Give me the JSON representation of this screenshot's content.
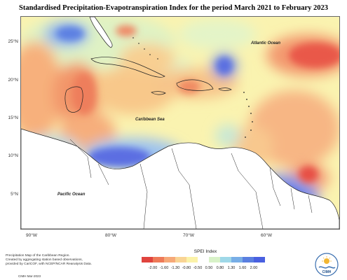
{
  "title": "Standardised Precipitation-Evapotranspiration Index for the period March 2021 to February 2023",
  "map": {
    "y_ticks": [
      "25°N",
      "20°N",
      "15°N",
      "10°N",
      "5°N"
    ],
    "x_ticks": [
      "90°W",
      "80°W",
      "70°W",
      "60°W"
    ],
    "labels": {
      "atlantic": "Atlantic Ocean",
      "caribbean": "Caribbean Sea",
      "pacific": "Pacific Ocean"
    }
  },
  "legend": {
    "title": "SPEI Index",
    "values": [
      "-2.00",
      "-1.60",
      "-1.30",
      "-0.80",
      "-0.50",
      "0.50",
      "0.80",
      "1.30",
      "1.60",
      "2.00"
    ],
    "colors": [
      "#e0443e",
      "#ee7a58",
      "#f6a978",
      "#f9d494",
      "#fbf2a8",
      "#ffffff",
      "#d8f2c8",
      "#9fd8e8",
      "#78aee6",
      "#5a7fe0",
      "#4960e0"
    ]
  },
  "footnote": {
    "line1": "Precipitation Map of the Caribbean Region.",
    "line2": "Created by aggregating station based observations,",
    "line3": "provided by CariCOF, with NCEP/NCAR Reanalysis Data.",
    "credit": "CIMH Mar-2023"
  },
  "logo": {
    "text": "CIMH"
  }
}
